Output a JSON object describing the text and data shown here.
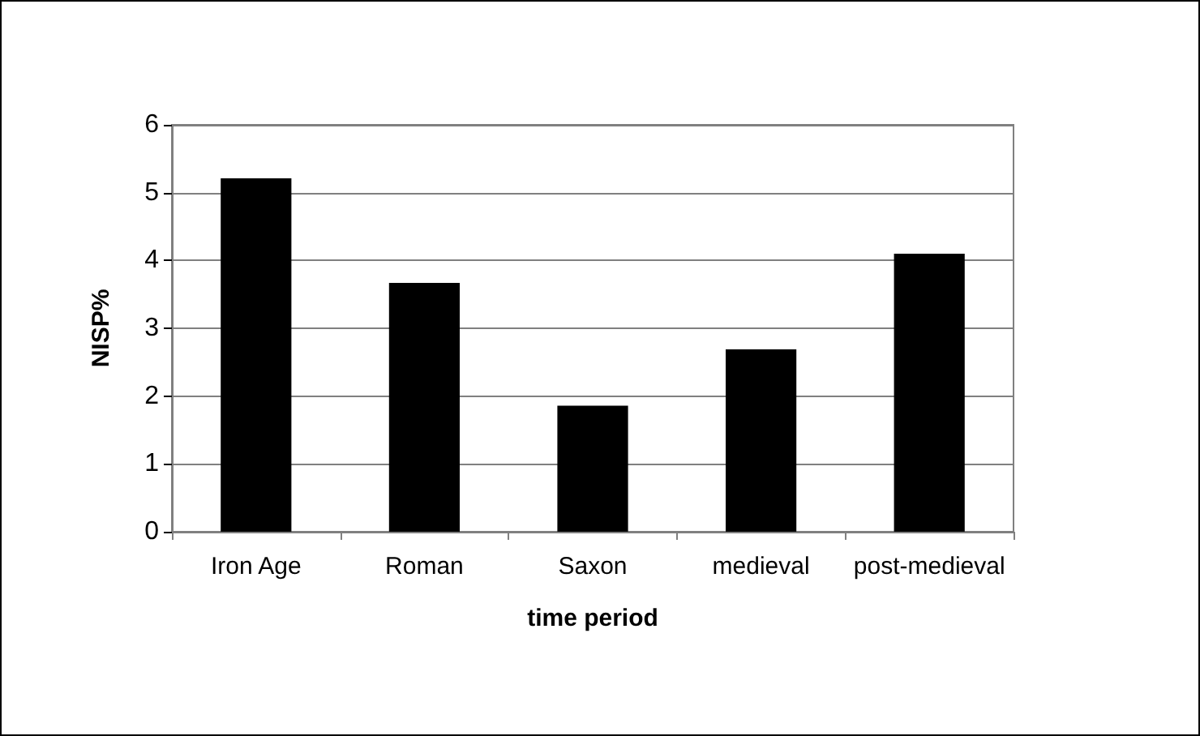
{
  "chart_data": {
    "type": "bar",
    "xlabel": "time period",
    "ylabel": "NISP%",
    "categories": [
      "Iron Age",
      "Roman",
      "Saxon",
      "medieval",
      "post-medieval"
    ],
    "values": [
      5.21,
      3.67,
      1.86,
      2.69,
      4.1
    ],
    "color": "#000000",
    "ylim": [
      0,
      6
    ],
    "yticks": [
      0,
      1,
      2,
      3,
      4,
      5,
      6
    ],
    "grid": "y"
  }
}
